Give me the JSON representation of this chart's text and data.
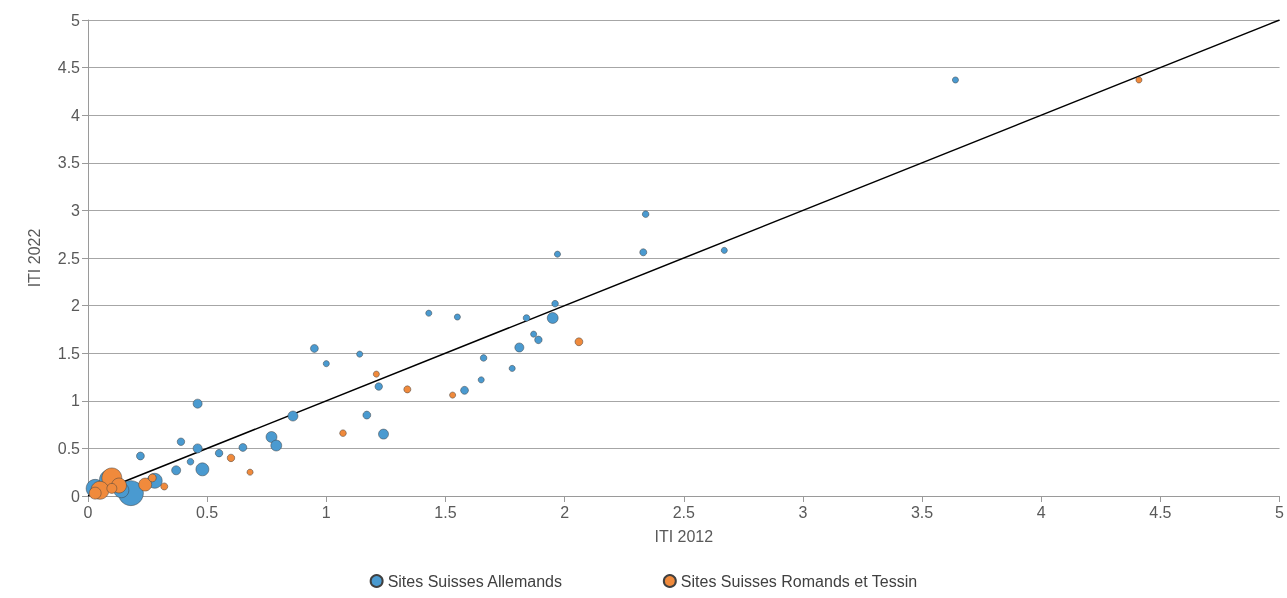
{
  "chart_data": {
    "type": "bubble",
    "xlabel": "ITI 2012",
    "ylabel": "ITI 2022",
    "xlim": [
      0,
      5
    ],
    "ylim": [
      0,
      5
    ],
    "xticks": [
      0,
      0.5,
      1,
      1.5,
      2,
      2.5,
      3,
      3.5,
      4,
      4.5,
      5
    ],
    "yticks": [
      0,
      0.5,
      1,
      1.5,
      2,
      2.5,
      3,
      3.5,
      4,
      4.5,
      5
    ],
    "grid": "y",
    "legend": "bottom",
    "marker": "circle",
    "series": [
      {
        "name": "Sites Suisses Allemands",
        "color": "#4a9ad0",
        "x": [
          3.64,
          2.34,
          2.33,
          2.67,
          1.97,
          1.96,
          1.95,
          1.84,
          1.87,
          1.81,
          1.89,
          1.43,
          1.55,
          0.95,
          1.0,
          1.14,
          1.66,
          1.65,
          1.78,
          1.58,
          1.22,
          1.17,
          1.24,
          0.86,
          0.77,
          0.79,
          0.65,
          0.55,
          0.46,
          0.46,
          0.39,
          0.22,
          0.43,
          0.37,
          0.48,
          0.28,
          0.18,
          0.03,
          0.09,
          0.14
        ],
        "values": [
          4.37,
          2.96,
          2.56,
          2.58,
          2.54,
          2.02,
          1.87,
          1.87,
          1.7,
          1.56,
          1.64,
          1.92,
          1.88,
          1.55,
          1.39,
          1.49,
          1.45,
          1.22,
          1.34,
          1.11,
          1.15,
          0.85,
          0.65,
          0.84,
          0.62,
          0.53,
          0.51,
          0.45,
          0.97,
          0.5,
          0.57,
          0.42,
          0.36,
          0.27,
          0.28,
          0.16,
          0.03,
          0.08,
          0.17,
          0.06
        ],
        "sizes": [
          0.06,
          0.07,
          0.08,
          0.06,
          0.06,
          0.07,
          0.19,
          0.07,
          0.06,
          0.13,
          0.09,
          0.06,
          0.06,
          0.1,
          0.06,
          0.06,
          0.07,
          0.06,
          0.06,
          0.1,
          0.09,
          0.1,
          0.16,
          0.16,
          0.19,
          0.19,
          0.1,
          0.09,
          0.13,
          0.13,
          0.09,
          0.1,
          0.07,
          0.13,
          0.27,
          0.36,
          1,
          0.52,
          0.64,
          0.36
        ]
      },
      {
        "name": "Sites Suisses Romands et Tessin",
        "color": "#f08a3c",
        "x": [
          4.41,
          2.06,
          1.21,
          1.34,
          1.53,
          1.07,
          0.6,
          0.68,
          0.32,
          0.24,
          0.27,
          0.1,
          0.13,
          0.05,
          0.03,
          0.1
        ],
        "values": [
          4.37,
          1.62,
          1.28,
          1.12,
          1.06,
          0.66,
          0.4,
          0.25,
          0.1,
          0.12,
          0.19,
          0.19,
          0.11,
          0.06,
          0.03,
          0.08
        ],
        "sizes": [
          0.06,
          0.1,
          0.06,
          0.08,
          0.06,
          0.07,
          0.09,
          0.06,
          0.08,
          0.27,
          0.1,
          0.64,
          0.36,
          0.52,
          0.23,
          0.16
        ]
      },
      {
        "type": "line",
        "color": "#000000",
        "x": [
          0,
          5
        ],
        "values": [
          0,
          5
        ],
        "line_style": "solid",
        "marker": "none"
      }
    ]
  }
}
